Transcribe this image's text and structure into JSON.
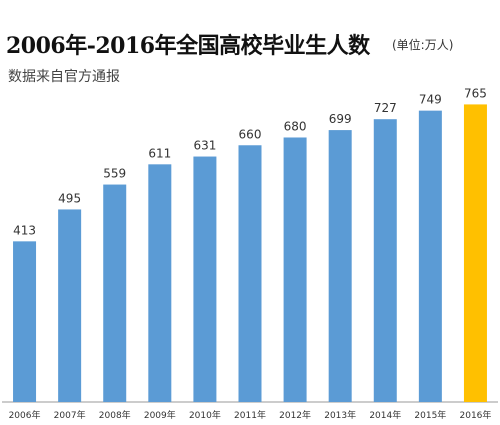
{
  "chart_data": {
    "type": "bar",
    "title": "2006年-2016年全国高校毕业生人数",
    "unit_note": "(单位:万人)",
    "subtitle": "数据来自官方通报",
    "categories": [
      "2006年",
      "2007年",
      "2008年",
      "2009年",
      "2010年",
      "2011年",
      "2012年",
      "2013年",
      "2014年",
      "2015年",
      "2016年"
    ],
    "values": [
      413,
      495,
      559,
      611,
      631,
      660,
      680,
      699,
      727,
      749,
      765
    ],
    "highlight_index": 10,
    "ylim": [
      0,
      800
    ],
    "grid": false,
    "legend": "none",
    "colors": {
      "bar": "#5b9bd5",
      "highlight": "#ffc000",
      "axis": "#999999",
      "label": "#333333"
    }
  }
}
